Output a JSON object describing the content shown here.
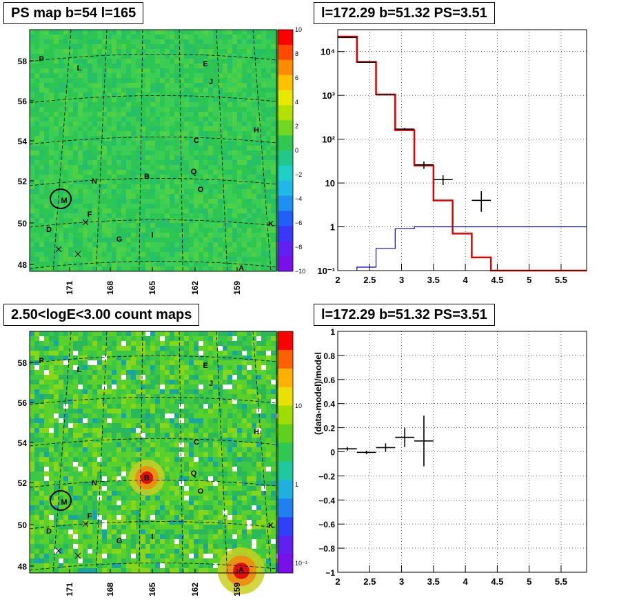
{
  "colors": {
    "map_bg": "#31c853",
    "map_bg2": "#3fd25a",
    "red": "#e00000",
    "blue": "#0000cc",
    "black": "#000000"
  },
  "panels": [
    {
      "id": "ps-map",
      "title": "PS map b=54 l=165",
      "type": "heatmap",
      "y_ticks": [
        "48",
        "50",
        "52",
        "54",
        "56",
        "58"
      ],
      "x_ticks": [
        "171",
        "168",
        "165",
        "162",
        "159"
      ],
      "colorbar_ticks": [
        "10",
        "8",
        "6",
        "4",
        "2",
        "0",
        "−2",
        "−4",
        "−6",
        "−8",
        "−10"
      ],
      "labels": [
        "P",
        "L",
        "E",
        "J",
        "H",
        "C",
        "N",
        "B",
        "Q",
        "O",
        "M",
        "F",
        "D",
        "G",
        "I",
        "K",
        "A"
      ]
    },
    {
      "id": "count-map",
      "title": "2.50<logE<3.00 count maps",
      "type": "heatmap",
      "y_ticks": [
        "48",
        "50",
        "52",
        "54",
        "56",
        "58"
      ],
      "x_ticks": [
        "171",
        "168",
        "165",
        "162",
        "159"
      ],
      "colorbar_ticks": [
        "10",
        "1",
        "10⁻¹"
      ],
      "labels": [
        "P",
        "L",
        "E",
        "J",
        "H",
        "C",
        "N",
        "B",
        "Q",
        "O",
        "M",
        "F",
        "D",
        "G",
        "I",
        "K",
        "A"
      ]
    }
  ],
  "chart_data": [
    {
      "type": "line",
      "title": "l=172.29 b=51.32 PS=3.51",
      "x_ticks": [
        "2",
        "2.5",
        "3",
        "3.5",
        "4",
        "4.5",
        "5",
        "5.5"
      ],
      "y_ticks": [
        "10⁻¹",
        "1",
        "10",
        "10²",
        "10³",
        "10⁴"
      ],
      "xlim": [
        2.0,
        5.9
      ],
      "ylim_log10": [
        -1,
        4.5
      ],
      "log_y": true,
      "grid": true,
      "series": [
        {
          "color": "#e00000",
          "style": "step",
          "edges": [
            2.0,
            2.3,
            2.6,
            2.9,
            3.2,
            3.5,
            3.8,
            4.1,
            4.4,
            5.9
          ],
          "values": [
            22000,
            5800,
            1050,
            160,
            25,
            4,
            0.7,
            0.2,
            0.1
          ]
        },
        {
          "color": "#0000cc",
          "style": "step",
          "edges": [
            2.3,
            2.6,
            2.9,
            3.2,
            5.9
          ],
          "values": [
            0.12,
            0.32,
            0.9,
            1.0
          ]
        },
        {
          "color": "#000000",
          "style": "errorbar",
          "points": [
            {
              "x": 2.15,
              "xerr": 0.15,
              "y": 21000,
              "ylo": 20500,
              "yhi": 21500
            },
            {
              "x": 2.45,
              "xerr": 0.15,
              "y": 5700,
              "ylo": 5600,
              "yhi": 5800
            },
            {
              "x": 2.75,
              "xerr": 0.15,
              "y": 1030,
              "ylo": 1000,
              "yhi": 1060
            },
            {
              "x": 3.05,
              "xerr": 0.15,
              "y": 170,
              "ylo": 158,
              "yhi": 182
            },
            {
              "x": 3.35,
              "xerr": 0.15,
              "y": 26,
              "ylo": 21,
              "yhi": 31
            },
            {
              "x": 3.65,
              "xerr": 0.15,
              "y": 12,
              "ylo": 9,
              "yhi": 15
            },
            {
              "x": 4.25,
              "xerr": 0.15,
              "y": 4,
              "ylo": 2.2,
              "yhi": 6.5
            }
          ]
        }
      ]
    },
    {
      "type": "scatter",
      "title": "l=172.29 b=51.32 PS=3.51",
      "ylabel": "(data-model)/model",
      "x_ticks": [
        "2",
        "2.5",
        "3",
        "3.5",
        "4",
        "4.5",
        "5",
        "5.5"
      ],
      "y_ticks": [
        "1",
        "0.8",
        "0.6",
        "0.4",
        "0.2",
        "0",
        "−0.2",
        "−0.4",
        "−0.6",
        "−0.8",
        "−1"
      ],
      "xlim": [
        2.0,
        5.9
      ],
      "ylim": [
        -1,
        1
      ],
      "grid": true,
      "points": [
        {
          "x": 2.15,
          "xerr": 0.15,
          "y": 0.025,
          "ylo": 0.01,
          "yhi": 0.04
        },
        {
          "x": 2.45,
          "xerr": 0.15,
          "y": -0.005,
          "ylo": -0.02,
          "yhi": 0.01
        },
        {
          "x": 2.75,
          "xerr": 0.15,
          "y": 0.035,
          "ylo": 0.0,
          "yhi": 0.07
        },
        {
          "x": 3.05,
          "xerr": 0.15,
          "y": 0.12,
          "ylo": 0.04,
          "yhi": 0.2
        },
        {
          "x": 3.35,
          "xerr": 0.15,
          "y": 0.09,
          "ylo": -0.12,
          "yhi": 0.3
        }
      ]
    }
  ]
}
